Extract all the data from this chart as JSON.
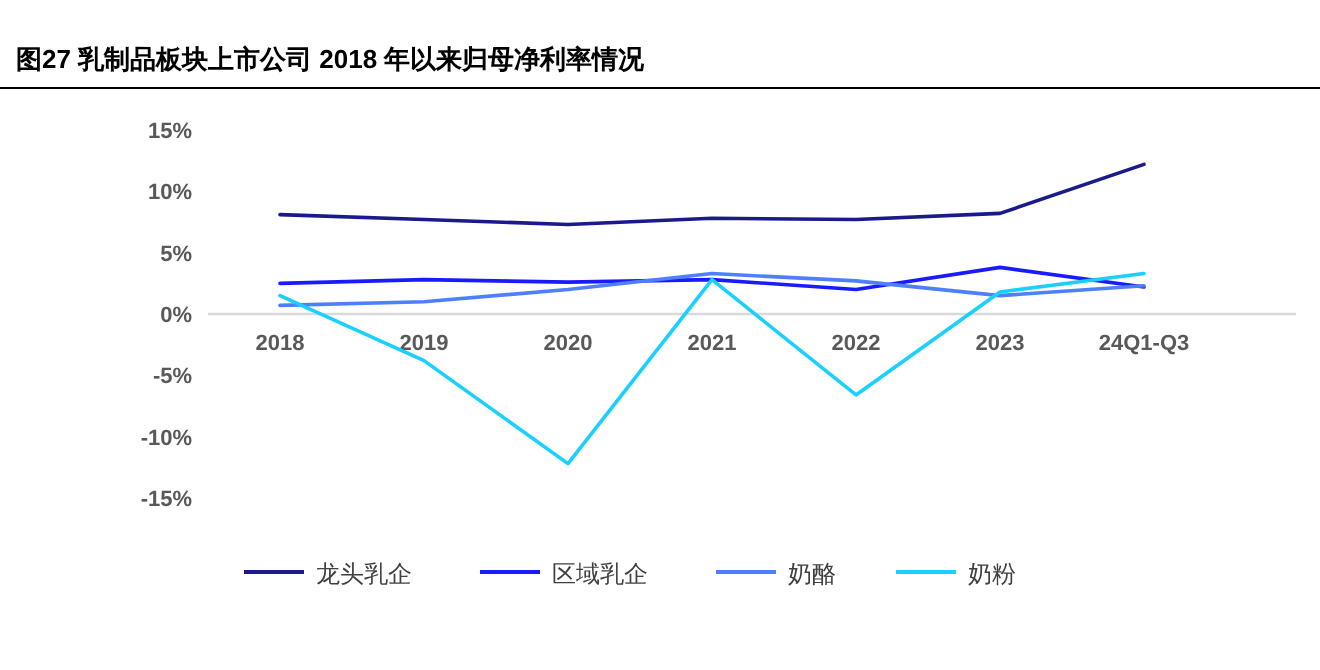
{
  "chart_data": {
    "type": "line",
    "title": "图27 乳制品板块上市公司 2018 年以来归母净利率情况",
    "categories": [
      "2018",
      "2019",
      "2020",
      "2021",
      "2022",
      "2023",
      "24Q1-Q3"
    ],
    "series": [
      {
        "name": "龙头乳企",
        "color": "#1a1a8c",
        "values": [
          8.1,
          7.7,
          7.3,
          7.8,
          7.7,
          8.2,
          12.2
        ]
      },
      {
        "name": "区域乳企",
        "color": "#1a1aff",
        "values": [
          2.5,
          2.8,
          2.6,
          2.8,
          2.0,
          3.8,
          2.2
        ]
      },
      {
        "name": "奶酪",
        "color": "#4d7fff",
        "values": [
          0.7,
          1.0,
          2.0,
          3.3,
          2.7,
          1.5,
          2.3
        ]
      },
      {
        "name": "奶粉",
        "color": "#1ad0ff",
        "values": [
          1.5,
          -3.8,
          -12.2,
          2.8,
          -6.6,
          1.8,
          3.3
        ]
      }
    ],
    "ylim": [
      -15,
      15
    ],
    "yticks": [
      {
        "value": -15,
        "label": "-15%"
      },
      {
        "value": -10,
        "label": "-10%"
      },
      {
        "value": -5,
        "label": "-5%"
      },
      {
        "value": 0,
        "label": "0%"
      },
      {
        "value": 5,
        "label": "5%"
      },
      {
        "value": 10,
        "label": "10%"
      },
      {
        "value": 15,
        "label": "15%"
      }
    ],
    "legend": "bottom"
  }
}
